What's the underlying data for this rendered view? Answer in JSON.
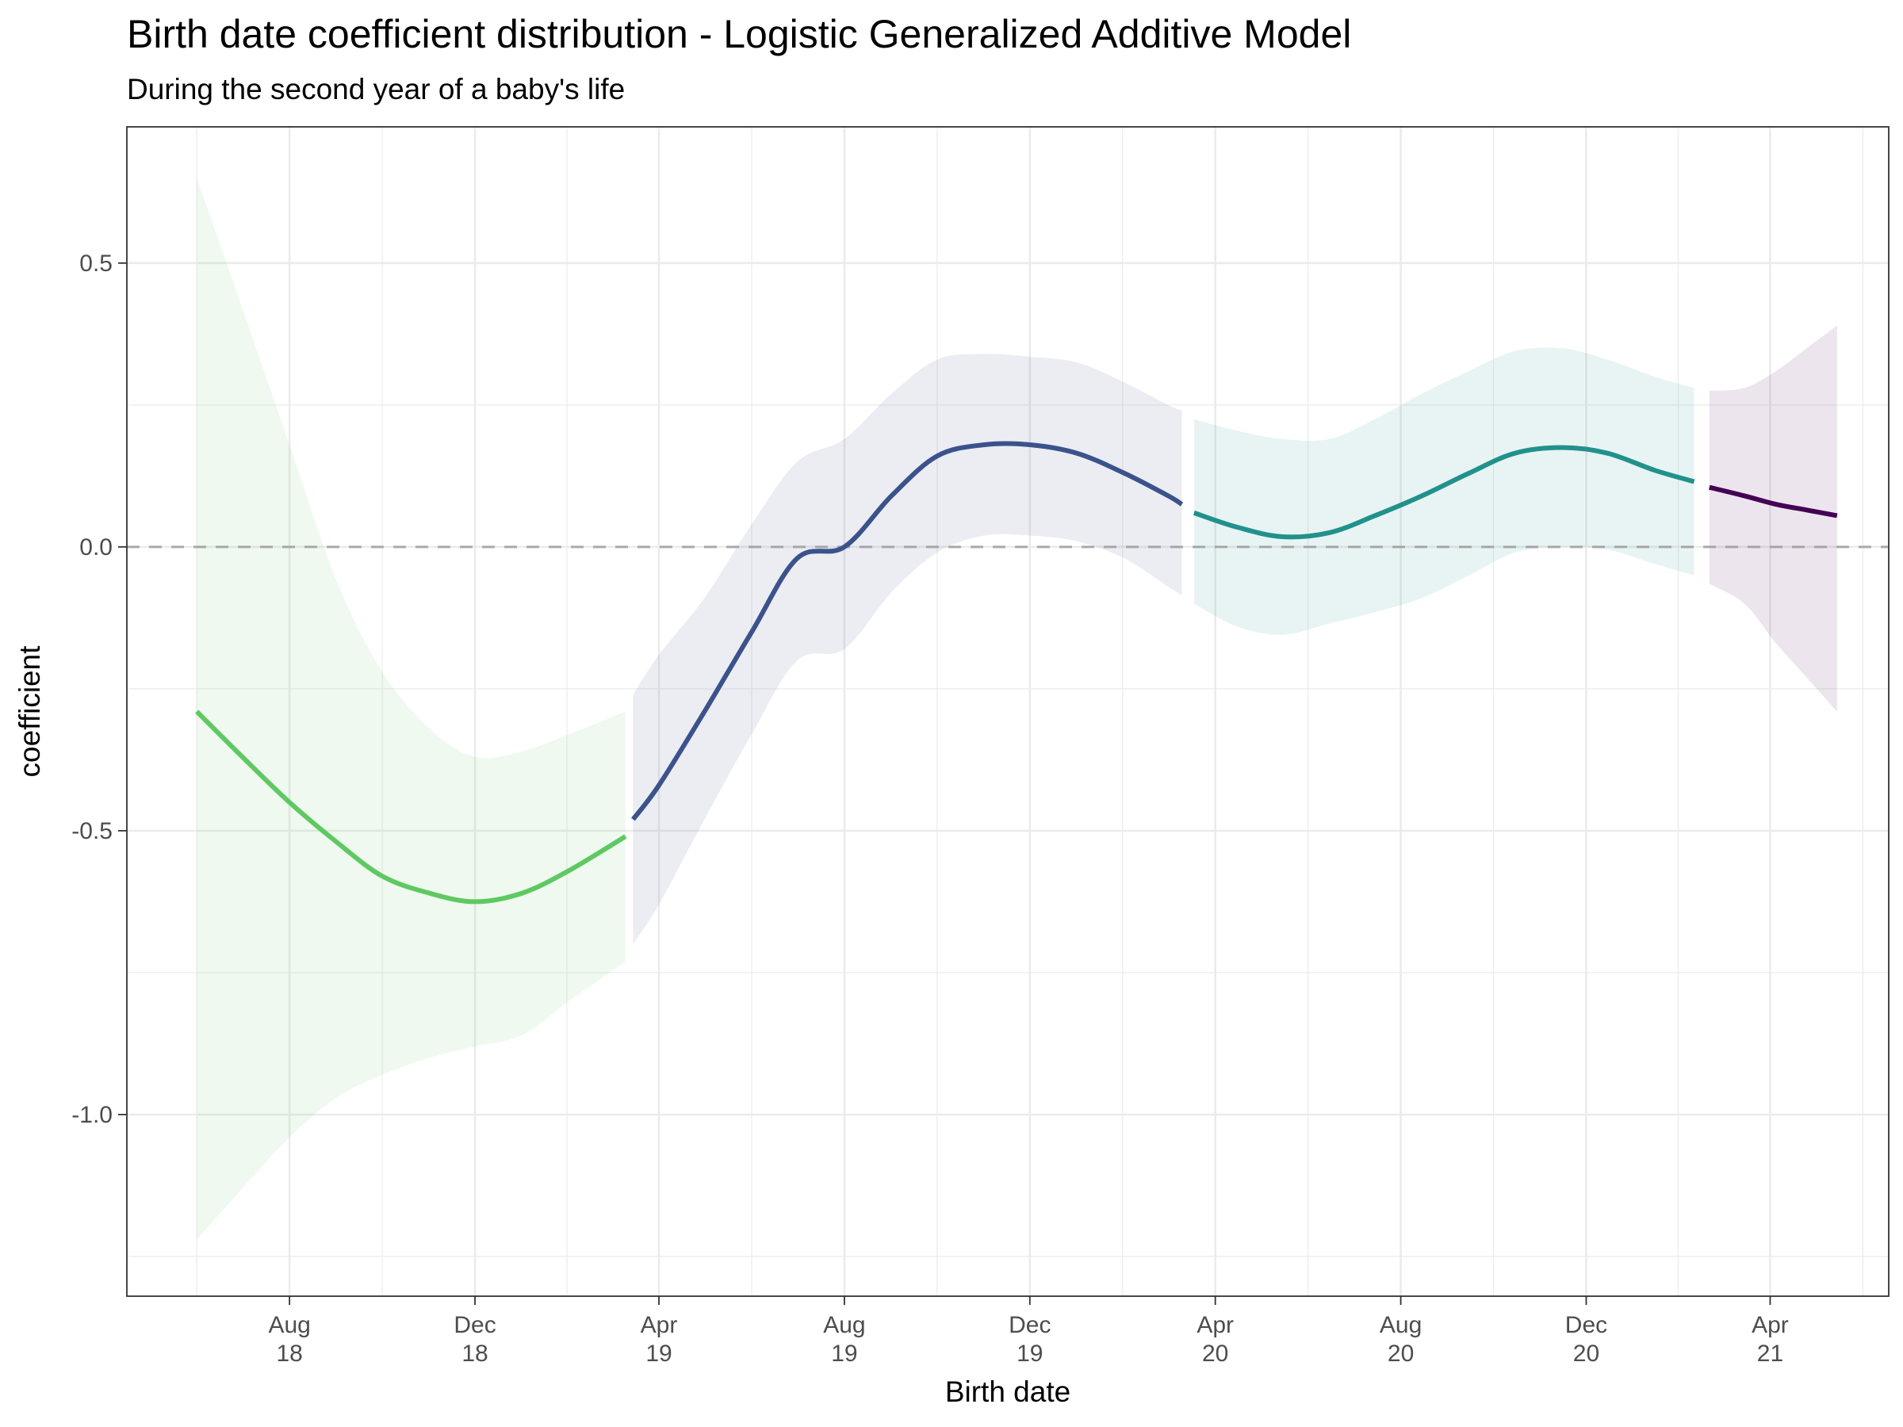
{
  "chart_data": {
    "type": "line",
    "title": "Birth date coefficient distribution - Logistic Generalized Additive Model",
    "subtitle": "During the second year of a baby's life",
    "xlabel": "Birth date",
    "ylabel": "coefficient",
    "xlim": [
      "2018-04-16",
      "2021-06-18"
    ],
    "ylim": [
      -1.32,
      0.74
    ],
    "x_ticks": [
      {
        "x": "2018-08-01",
        "label": [
          "Aug",
          "18"
        ]
      },
      {
        "x": "2018-12-01",
        "label": [
          "Dec",
          "18"
        ]
      },
      {
        "x": "2019-04-01",
        "label": [
          "Apr",
          "19"
        ]
      },
      {
        "x": "2019-08-01",
        "label": [
          "Aug",
          "19"
        ]
      },
      {
        "x": "2019-12-01",
        "label": [
          "Dec",
          "19"
        ]
      },
      {
        "x": "2020-04-01",
        "label": [
          "Apr",
          "20"
        ]
      },
      {
        "x": "2020-08-01",
        "label": [
          "Aug",
          "20"
        ]
      },
      {
        "x": "2020-12-01",
        "label": [
          "Dec",
          "20"
        ]
      },
      {
        "x": "2021-04-01",
        "label": [
          "Apr",
          "21"
        ]
      }
    ],
    "y_ticks": [
      {
        "y": 0.5,
        "label": "0.5"
      },
      {
        "y": 0.0,
        "label": "0.0"
      },
      {
        "y": -0.5,
        "label": "-0.5"
      },
      {
        "y": -1.0,
        "label": "-1.0"
      }
    ],
    "reference_line": {
      "y": 0.0,
      "style": "dashed",
      "color": "#999999"
    },
    "grid": true,
    "legend": "none",
    "series": [
      {
        "color": "#5ec962",
        "points": [
          {
            "x": "2018-06-01",
            "y": -0.29,
            "lo": -1.22,
            "hi": 0.65
          },
          {
            "x": "2018-07-01",
            "y": -0.37,
            "lo": -1.13,
            "hi": 0.42
          },
          {
            "x": "2018-08-01",
            "y": -0.45,
            "lo": -1.04,
            "hi": 0.18
          },
          {
            "x": "2018-09-01",
            "y": -0.52,
            "lo": -0.97,
            "hi": -0.06
          },
          {
            "x": "2018-10-01",
            "y": -0.58,
            "lo": -0.93,
            "hi": -0.22
          },
          {
            "x": "2018-11-01",
            "y": -0.61,
            "lo": -0.9,
            "hi": -0.32
          },
          {
            "x": "2018-12-01",
            "y": -0.625,
            "lo": -0.88,
            "hi": -0.37
          },
          {
            "x": "2019-01-01",
            "y": -0.61,
            "lo": -0.86,
            "hi": -0.36
          },
          {
            "x": "2019-02-01",
            "y": -0.57,
            "lo": -0.8,
            "hi": -0.33
          },
          {
            "x": "2019-03-10",
            "y": -0.51,
            "lo": -0.73,
            "hi": -0.29
          }
        ]
      },
      {
        "color": "#3b528b",
        "points": [
          {
            "x": "2019-03-15",
            "y": -0.48,
            "lo": -0.7,
            "hi": -0.26
          },
          {
            "x": "2019-04-01",
            "y": -0.42,
            "lo": -0.63,
            "hi": -0.19
          },
          {
            "x": "2019-05-01",
            "y": -0.29,
            "lo": -0.48,
            "hi": -0.09
          },
          {
            "x": "2019-06-01",
            "y": -0.15,
            "lo": -0.33,
            "hi": 0.04
          },
          {
            "x": "2019-07-01",
            "y": -0.02,
            "lo": -0.2,
            "hi": 0.15
          },
          {
            "x": "2019-08-01",
            "y": 0.0,
            "lo": -0.18,
            "hi": 0.19
          },
          {
            "x": "2019-09-01",
            "y": 0.09,
            "lo": -0.08,
            "hi": 0.27
          },
          {
            "x": "2019-10-01",
            "y": 0.16,
            "lo": -0.01,
            "hi": 0.33
          },
          {
            "x": "2019-11-01",
            "y": 0.18,
            "lo": 0.02,
            "hi": 0.34
          },
          {
            "x": "2019-12-01",
            "y": 0.18,
            "lo": 0.02,
            "hi": 0.335
          },
          {
            "x": "2020-01-01",
            "y": 0.165,
            "lo": 0.01,
            "hi": 0.325
          },
          {
            "x": "2020-02-01",
            "y": 0.13,
            "lo": -0.02,
            "hi": 0.29
          },
          {
            "x": "2020-03-01",
            "y": 0.09,
            "lo": -0.07,
            "hi": 0.25
          },
          {
            "x": "2020-03-10",
            "y": 0.075,
            "lo": -0.085,
            "hi": 0.24
          }
        ]
      },
      {
        "color": "#21918c",
        "points": [
          {
            "x": "2020-03-18",
            "y": 0.06,
            "lo": -0.1,
            "hi": 0.225
          },
          {
            "x": "2020-04-15",
            "y": 0.035,
            "lo": -0.14,
            "hi": 0.205
          },
          {
            "x": "2020-05-15",
            "y": 0.018,
            "lo": -0.155,
            "hi": 0.19
          },
          {
            "x": "2020-06-15",
            "y": 0.025,
            "lo": -0.135,
            "hi": 0.19
          },
          {
            "x": "2020-07-15",
            "y": 0.055,
            "lo": -0.115,
            "hi": 0.225
          },
          {
            "x": "2020-08-15",
            "y": 0.09,
            "lo": -0.09,
            "hi": 0.27
          },
          {
            "x": "2020-09-15",
            "y": 0.13,
            "lo": -0.05,
            "hi": 0.31
          },
          {
            "x": "2020-10-15",
            "y": 0.165,
            "lo": -0.01,
            "hi": 0.345
          },
          {
            "x": "2020-11-15",
            "y": 0.175,
            "lo": 0.0,
            "hi": 0.35
          },
          {
            "x": "2020-12-15",
            "y": 0.165,
            "lo": -0.005,
            "hi": 0.33
          },
          {
            "x": "2021-01-15",
            "y": 0.135,
            "lo": -0.03,
            "hi": 0.3
          },
          {
            "x": "2021-02-10",
            "y": 0.115,
            "lo": -0.05,
            "hi": 0.28
          }
        ]
      },
      {
        "color": "#440154",
        "points": [
          {
            "x": "2021-02-20",
            "y": 0.105,
            "lo": -0.065,
            "hi": 0.275
          },
          {
            "x": "2021-03-15",
            "y": 0.09,
            "lo": -0.1,
            "hi": 0.28
          },
          {
            "x": "2021-04-05",
            "y": 0.075,
            "lo": -0.17,
            "hi": 0.31
          },
          {
            "x": "2021-04-25",
            "y": 0.065,
            "lo": -0.23,
            "hi": 0.35
          },
          {
            "x": "2021-05-15",
            "y": 0.055,
            "lo": -0.29,
            "hi": 0.39
          }
        ]
      }
    ]
  }
}
